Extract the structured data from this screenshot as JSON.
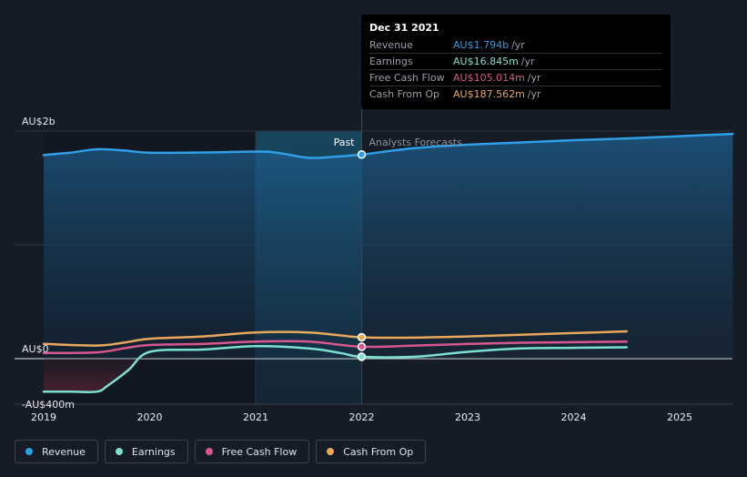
{
  "tooltip": {
    "date": "Dec 31 2021",
    "rows": [
      {
        "label": "Revenue",
        "value": "AU$1.794b",
        "unit": "/yr",
        "color": "#2f9fe8"
      },
      {
        "label": "Earnings",
        "value": "AU$16.845m",
        "unit": "/yr",
        "color": "#7be0cf"
      },
      {
        "label": "Free Cash Flow",
        "value": "AU$105.014m",
        "unit": "/yr",
        "color": "#d8578e"
      },
      {
        "label": "Cash From Op",
        "value": "AU$187.562m",
        "unit": "/yr",
        "color": "#e8a85a"
      }
    ]
  },
  "legend": [
    {
      "label": "Revenue",
      "color": "#2f9fe8"
    },
    {
      "label": "Earnings",
      "color": "#7be0cf"
    },
    {
      "label": "Free Cash Flow",
      "color": "#d8578e"
    },
    {
      "label": "Cash From Op",
      "color": "#e8a85a"
    }
  ],
  "chart_data": {
    "type": "line",
    "y_tick_labels": [
      "AU$2b",
      "AU$0",
      "-AU$400m"
    ],
    "y_ticks": [
      2000,
      0,
      -400
    ],
    "ylim": [
      -400,
      2000
    ],
    "x_tick_labels": [
      "2019",
      "2020",
      "2021",
      "2022",
      "2023",
      "2024",
      "2025"
    ],
    "xlim": [
      2019,
      2025.5
    ],
    "past_label": "Past",
    "forecast_label": "Analysts Forecasts",
    "divider_x": 2022.0,
    "highlight_range": [
      2021.0,
      2022.0
    ],
    "series": [
      {
        "name": "Revenue",
        "color": "#2f9fe8",
        "points": [
          [
            2019.0,
            1790
          ],
          [
            2019.25,
            1810
          ],
          [
            2019.5,
            1840
          ],
          [
            2019.75,
            1830
          ],
          [
            2020.0,
            1810
          ],
          [
            2020.5,
            1812
          ],
          [
            2021.0,
            1820
          ],
          [
            2021.2,
            1810
          ],
          [
            2021.5,
            1765
          ],
          [
            2021.75,
            1775
          ],
          [
            2022.0,
            1794
          ],
          [
            2022.5,
            1850
          ],
          [
            2023.0,
            1880
          ],
          [
            2023.5,
            1900
          ],
          [
            2024.0,
            1920
          ],
          [
            2024.5,
            1935
          ],
          [
            2025.0,
            1955
          ],
          [
            2025.5,
            1975
          ]
        ]
      },
      {
        "name": "Earnings",
        "color": "#7be0cf",
        "points": [
          [
            2019.0,
            -290
          ],
          [
            2019.25,
            -290
          ],
          [
            2019.5,
            -290
          ],
          [
            2019.6,
            -240
          ],
          [
            2019.8,
            -100
          ],
          [
            2020.0,
            60
          ],
          [
            2020.5,
            80
          ],
          [
            2021.0,
            110
          ],
          [
            2021.5,
            90
          ],
          [
            2021.8,
            50
          ],
          [
            2022.0,
            17
          ],
          [
            2022.5,
            17
          ],
          [
            2023.0,
            60
          ],
          [
            2023.5,
            90
          ],
          [
            2024.0,
            95
          ],
          [
            2024.5,
            100
          ]
        ]
      },
      {
        "name": "Free Cash Flow",
        "color": "#d8578e",
        "points": [
          [
            2019.0,
            50
          ],
          [
            2019.5,
            55
          ],
          [
            2019.75,
            90
          ],
          [
            2020.0,
            120
          ],
          [
            2020.5,
            130
          ],
          [
            2021.0,
            150
          ],
          [
            2021.5,
            150
          ],
          [
            2022.0,
            105
          ],
          [
            2022.5,
            115
          ],
          [
            2023.0,
            130
          ],
          [
            2023.5,
            140
          ],
          [
            2024.0,
            145
          ],
          [
            2024.5,
            150
          ]
        ]
      },
      {
        "name": "Cash From Op",
        "color": "#e8a85a",
        "points": [
          [
            2019.0,
            130
          ],
          [
            2019.5,
            115
          ],
          [
            2019.75,
            140
          ],
          [
            2020.0,
            175
          ],
          [
            2020.5,
            195
          ],
          [
            2021.0,
            230
          ],
          [
            2021.5,
            230
          ],
          [
            2022.0,
            188
          ],
          [
            2022.5,
            185
          ],
          [
            2023.0,
            195
          ],
          [
            2023.5,
            210
          ],
          [
            2024.0,
            225
          ],
          [
            2024.5,
            240
          ]
        ]
      }
    ]
  }
}
